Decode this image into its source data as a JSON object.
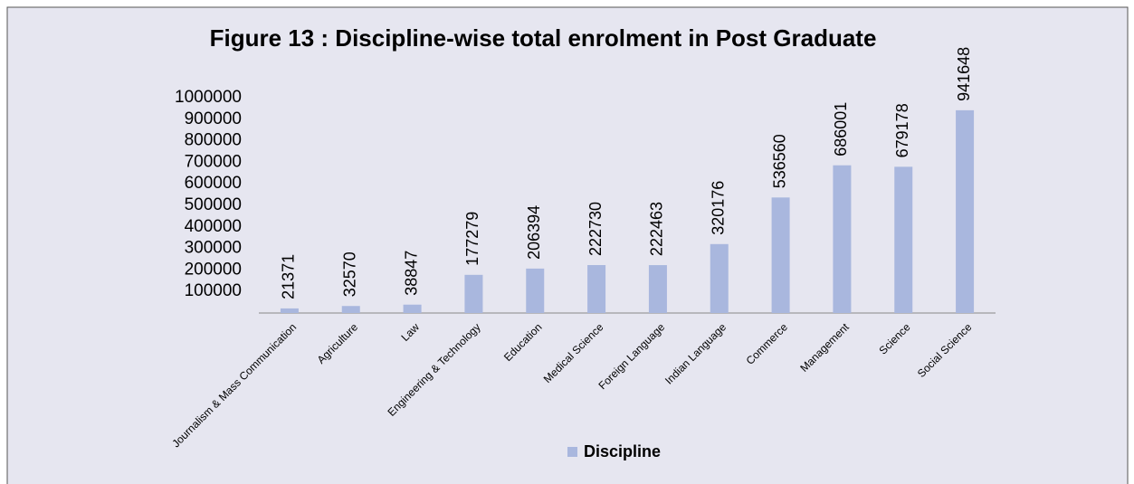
{
  "chart_data": {
    "type": "bar",
    "title": "Figure 13 : Discipline-wise total enrolment in Post Graduate",
    "categories": [
      "Journalism & Mass Communication",
      "Agriculture",
      "Law",
      "Engineering & Technology",
      "Education",
      "Medical Science",
      "Foreign Language",
      "Indian Language",
      "Commerce",
      "Management",
      "Science",
      "Social Science"
    ],
    "series": [
      {
        "name": "Discipline",
        "color": "#a9b7de",
        "values": [
          21371,
          32570,
          38847,
          177279,
          206394,
          222730,
          222463,
          320176,
          536560,
          686001,
          679178,
          941648
        ]
      }
    ],
    "ylim": [
      0,
      1000000
    ],
    "yticks": [
      100000,
      200000,
      300000,
      400000,
      500000,
      600000,
      700000,
      800000,
      900000,
      1000000
    ],
    "grid": false,
    "legend": "bottom"
  }
}
